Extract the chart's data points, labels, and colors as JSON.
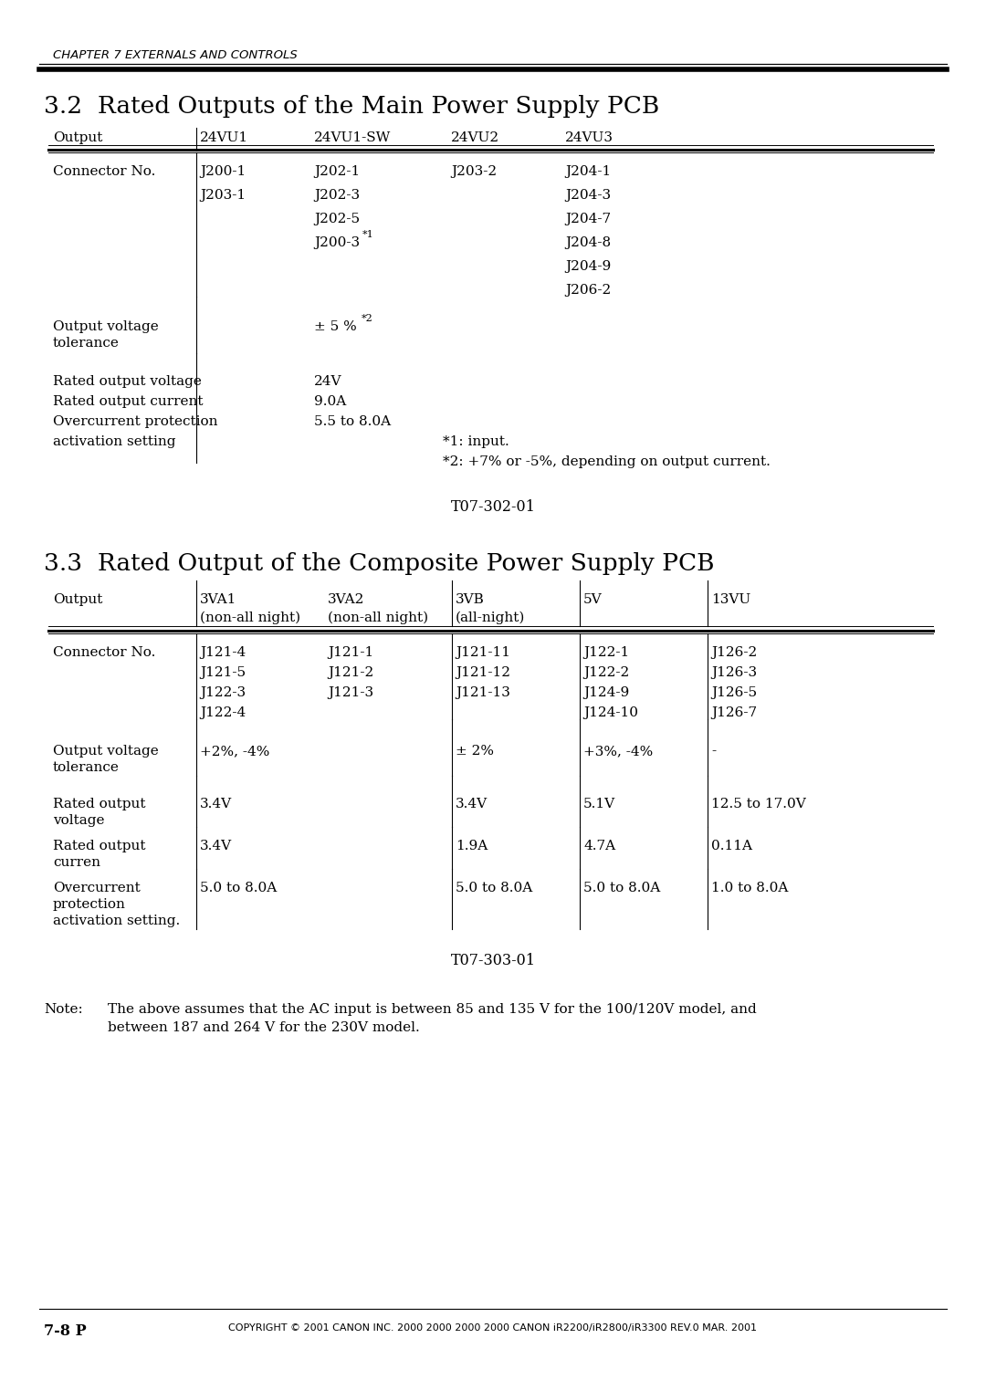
{
  "bg_color": "#ffffff",
  "chapter_header": "CHAPTER 7 EXTERNALS AND CONTROLS",
  "section1_title": "3.2  Rated Outputs of the Main Power Supply PCB",
  "section2_title": "3.3  Rated Output of the Composite Power Supply PCB",
  "table1_code": "T07-302-01",
  "table2_code": "T07-303-01",
  "footer_left": "7-8 P",
  "footer_right": "COPYRIGHT © 2001 CANON INC. 2000 2000 2000 2000 CANON iR2200/iR2800/iR3300 REV.0 MAR. 2001"
}
